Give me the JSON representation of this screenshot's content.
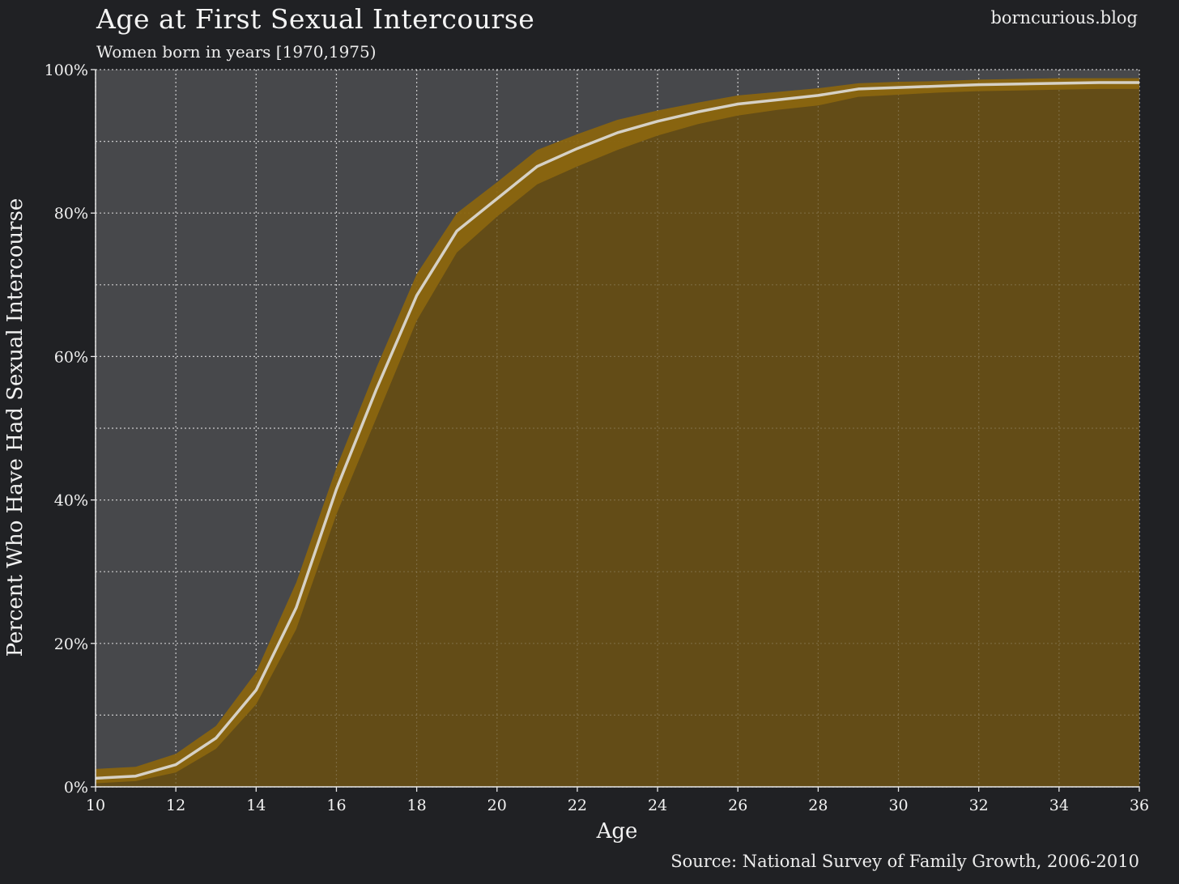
{
  "header": {
    "brand": "borncurious.blog"
  },
  "footer": {
    "source": "Source: National Survey of Family Growth, 2006-2010"
  },
  "colors": {
    "background": "#202124",
    "plot_background": "#47484b",
    "fill": "#634c17",
    "ci_band": "#8a650f",
    "line": "#d6d1c5",
    "grid": "#d8d8d8",
    "text": "#f2f2f2"
  },
  "chart_data": {
    "type": "area",
    "title": "Age at First Sexual Intercourse",
    "subtitle": "Women born in years [1970,1975)",
    "xlabel": "Age",
    "ylabel": "Percent Who Have Had Sexual Intercourse",
    "xlim": [
      10,
      36
    ],
    "ylim": [
      0,
      100
    ],
    "y_unit": "%",
    "grid": true,
    "x_ticks": [
      10,
      12,
      14,
      16,
      18,
      20,
      22,
      24,
      26,
      28,
      30,
      32,
      34,
      36
    ],
    "y_ticks": [
      0,
      20,
      40,
      60,
      80,
      100
    ],
    "y_tick_labels": [
      "0%",
      "20%",
      "40%",
      "60%",
      "80%",
      "100%"
    ],
    "series": [
      {
        "x": [
          10,
          11,
          12,
          13,
          14,
          15,
          16,
          17,
          18,
          19,
          20,
          21,
          22,
          23,
          24,
          25,
          26,
          27,
          28,
          29,
          30,
          31,
          32,
          33,
          34,
          35,
          36
        ],
        "values": [
          1.2,
          1.5,
          3.1,
          6.8,
          13.5,
          25.0,
          41.5,
          55.5,
          68.5,
          77.5,
          82.0,
          86.5,
          89.0,
          91.2,
          92.8,
          94.1,
          95.2,
          95.8,
          96.4,
          97.3,
          97.5,
          97.7,
          97.9,
          98.0,
          98.1,
          98.2,
          98.2
        ],
        "ci_lower": [
          0.5,
          0.8,
          2.0,
          5.3,
          11.5,
          22.0,
          38.0,
          51.5,
          65.0,
          74.5,
          79.5,
          84.0,
          86.5,
          88.8,
          90.8,
          92.4,
          93.6,
          94.4,
          95.0,
          96.2,
          96.5,
          96.8,
          97.0,
          97.1,
          97.2,
          97.3,
          97.3
        ],
        "ci_upper": [
          2.5,
          2.8,
          4.6,
          8.5,
          16.0,
          28.5,
          44.5,
          58.5,
          71.5,
          80.0,
          84.3,
          88.8,
          91.0,
          93.0,
          94.3,
          95.4,
          96.4,
          96.9,
          97.4,
          98.1,
          98.3,
          98.4,
          98.6,
          98.7,
          98.8,
          98.8,
          98.8
        ]
      }
    ]
  }
}
